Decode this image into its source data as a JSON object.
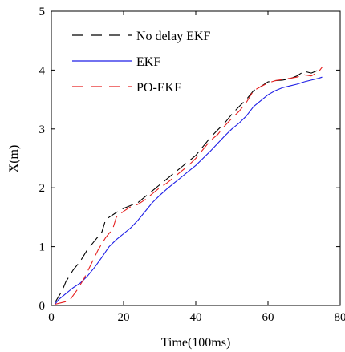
{
  "chart_data": {
    "type": "line",
    "xlabel": "Time(100ms)",
    "ylabel": "X(m)",
    "xlim": [
      0,
      80
    ],
    "ylim": [
      0,
      5
    ],
    "xticks": [
      0,
      20,
      40,
      60,
      80
    ],
    "yticks": [
      0,
      1,
      2,
      3,
      4,
      5
    ],
    "grid": false,
    "legend_position": "top-left",
    "series": [
      {
        "name": "No delay EKF",
        "color": "#000000",
        "dash": "dashed",
        "x": [
          1,
          3,
          4,
          6,
          8,
          10,
          12,
          14,
          15,
          16,
          18,
          20,
          22,
          24,
          26,
          28,
          30,
          32,
          34,
          36,
          38,
          40,
          42,
          44,
          46,
          48,
          50,
          52,
          54,
          56,
          58,
          60,
          62,
          64,
          66,
          68,
          70,
          72,
          74,
          75
        ],
        "y": [
          0.05,
          0.25,
          0.4,
          0.6,
          0.75,
          0.95,
          1.1,
          1.25,
          1.45,
          1.5,
          1.58,
          1.65,
          1.7,
          1.75,
          1.85,
          1.95,
          2.05,
          2.15,
          2.25,
          2.35,
          2.45,
          2.55,
          2.7,
          2.85,
          2.98,
          3.1,
          3.25,
          3.38,
          3.5,
          3.65,
          3.72,
          3.8,
          3.82,
          3.83,
          3.85,
          3.9,
          3.98,
          3.95,
          4.0,
          4.02
        ]
      },
      {
        "name": "EKF",
        "color": "#1f1fe6",
        "dash": "solid",
        "x": [
          1,
          2,
          4,
          6,
          8,
          10,
          12,
          14,
          16,
          18,
          20,
          22,
          24,
          26,
          28,
          30,
          32,
          34,
          36,
          38,
          40,
          42,
          44,
          46,
          48,
          50,
          52,
          54,
          56,
          58,
          60,
          62,
          64,
          66,
          68,
          70,
          72,
          74,
          75
        ],
        "y": [
          0.02,
          0.1,
          0.2,
          0.3,
          0.38,
          0.5,
          0.65,
          0.82,
          1.0,
          1.12,
          1.22,
          1.32,
          1.45,
          1.6,
          1.75,
          1.87,
          1.98,
          2.08,
          2.18,
          2.28,
          2.38,
          2.5,
          2.62,
          2.75,
          2.88,
          3.0,
          3.1,
          3.22,
          3.38,
          3.48,
          3.58,
          3.65,
          3.7,
          3.73,
          3.76,
          3.8,
          3.83,
          3.86,
          3.88
        ]
      },
      {
        "name": "PO-EKF",
        "color": "#e62020",
        "dash": "dashed",
        "x": [
          1,
          3,
          5,
          7,
          9,
          11,
          13,
          15,
          17,
          18,
          20,
          22,
          24,
          26,
          28,
          30,
          32,
          34,
          36,
          38,
          40,
          42,
          44,
          46,
          48,
          50,
          52,
          54,
          55,
          56,
          58,
          60,
          62,
          64,
          66,
          68,
          70,
          72,
          74,
          75
        ],
        "y": [
          0.02,
          0.05,
          0.08,
          0.25,
          0.45,
          0.7,
          0.95,
          1.15,
          1.3,
          1.5,
          1.6,
          1.68,
          1.72,
          1.8,
          1.9,
          2.0,
          2.08,
          2.18,
          2.28,
          2.38,
          2.5,
          2.65,
          2.8,
          2.9,
          3.05,
          3.18,
          3.3,
          3.45,
          3.55,
          3.65,
          3.72,
          3.78,
          3.82,
          3.84,
          3.86,
          3.88,
          3.92,
          3.9,
          3.97,
          4.05
        ]
      }
    ]
  }
}
